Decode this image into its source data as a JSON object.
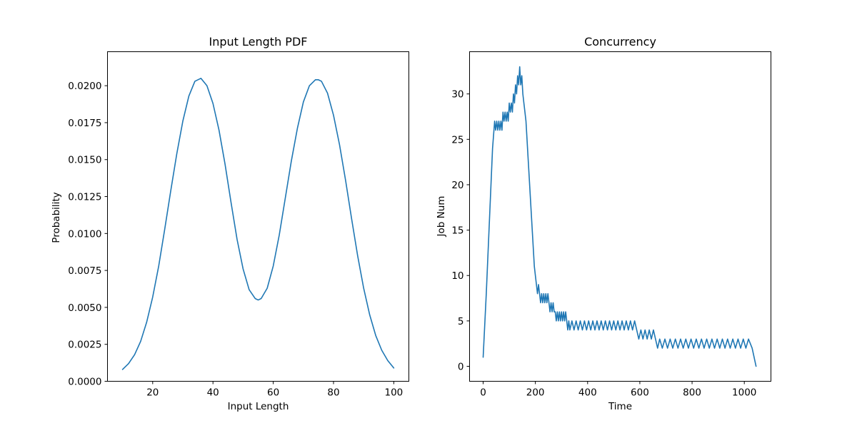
{
  "figure": {
    "line_color": "#1f77b4"
  },
  "chart_data": [
    {
      "type": "line",
      "title": "Input Length PDF",
      "xlabel": "Input Length",
      "ylabel": "Probability",
      "xlim": [
        5,
        105
      ],
      "ylim": [
        0,
        0.0223
      ],
      "xticks": [
        20,
        40,
        60,
        80,
        100
      ],
      "xtick_labels": [
        "20",
        "40",
        "60",
        "80",
        "100"
      ],
      "yticks": [
        0,
        0.0025,
        0.005,
        0.0075,
        0.01,
        0.0125,
        0.015,
        0.0175,
        0.02
      ],
      "ytick_labels": [
        "0.0000",
        "0.0025",
        "0.0050",
        "0.0075",
        "0.0100",
        "0.0125",
        "0.0150",
        "0.0175",
        "0.0200"
      ],
      "grid": false,
      "series": [
        {
          "x": [
            10,
            12,
            14,
            16,
            18,
            20,
            22,
            24,
            26,
            28,
            30,
            32,
            34,
            36,
            38,
            40,
            42,
            44,
            46,
            48,
            50,
            52,
            54,
            55,
            56,
            58,
            60,
            62,
            64,
            66,
            68,
            70,
            72,
            74,
            75,
            76,
            78,
            80,
            82,
            84,
            86,
            88,
            90,
            92,
            94,
            96,
            98,
            100
          ],
          "values": [
            0.0008,
            0.0012,
            0.0018,
            0.0027,
            0.004,
            0.0057,
            0.0078,
            0.0103,
            0.0129,
            0.0154,
            0.0176,
            0.0193,
            0.0203,
            0.0205,
            0.02,
            0.0188,
            0.017,
            0.0147,
            0.0121,
            0.0096,
            0.0076,
            0.0062,
            0.0056,
            0.0055,
            0.0056,
            0.0063,
            0.0078,
            0.0099,
            0.0124,
            0.0149,
            0.0171,
            0.0189,
            0.02,
            0.0204,
            0.0204,
            0.0203,
            0.0195,
            0.018,
            0.016,
            0.0136,
            0.011,
            0.0085,
            0.0063,
            0.0045,
            0.0031,
            0.0021,
            0.0014,
            0.0009
          ]
        }
      ]
    },
    {
      "type": "line",
      "title": "Concurrency",
      "xlabel": "Time",
      "ylabel": "Job Num",
      "xlim": [
        -52,
        1102
      ],
      "ylim": [
        -1.65,
        34.65
      ],
      "xticks": [
        0,
        200,
        400,
        600,
        800,
        1000
      ],
      "xtick_labels": [
        "0",
        "200",
        "400",
        "600",
        "800",
        "1000"
      ],
      "yticks": [
        0,
        5,
        10,
        15,
        20,
        25,
        30
      ],
      "ytick_labels": [
        "0",
        "5",
        "10",
        "15",
        "20",
        "25",
        "30"
      ],
      "grid": false,
      "series": [
        {
          "x": [
            0,
            12,
            24,
            36,
            44,
            48,
            52,
            56,
            60,
            64,
            68,
            72,
            76,
            80,
            84,
            88,
            92,
            96,
            100,
            104,
            108,
            112,
            116,
            120,
            124,
            128,
            132,
            136,
            140,
            144,
            148,
            152,
            156,
            160,
            164,
            168,
            172,
            176,
            180,
            184,
            188,
            192,
            196,
            200,
            204,
            208,
            212,
            216,
            220,
            224,
            228,
            232,
            236,
            240,
            244,
            248,
            252,
            256,
            260,
            264,
            268,
            272,
            276,
            280,
            284,
            288,
            292,
            296,
            300,
            304,
            308,
            312,
            316,
            320,
            324,
            328,
            332,
            340,
            348,
            356,
            364,
            372,
            380,
            388,
            396,
            404,
            412,
            420,
            428,
            436,
            444,
            452,
            460,
            468,
            476,
            484,
            492,
            500,
            508,
            516,
            524,
            532,
            540,
            548,
            556,
            564,
            572,
            580,
            588,
            596,
            604,
            612,
            620,
            628,
            636,
            644,
            652,
            660,
            668,
            676,
            686,
            696,
            706,
            716,
            726,
            736,
            746,
            756,
            766,
            776,
            786,
            796,
            806,
            816,
            826,
            836,
            846,
            856,
            866,
            876,
            886,
            896,
            906,
            916,
            926,
            936,
            946,
            956,
            966,
            976,
            986,
            996,
            1006,
            1016,
            1030,
            1045
          ],
          "values": [
            1,
            8,
            16,
            24,
            27,
            26,
            27,
            26,
            27,
            26,
            27,
            26,
            28,
            27,
            28,
            27,
            28,
            27,
            29,
            28,
            29,
            28,
            30,
            29,
            31,
            30,
            32,
            31,
            33,
            31,
            32,
            30,
            29,
            28,
            27,
            25,
            23,
            21,
            19,
            17,
            15,
            13,
            11,
            10,
            9,
            8,
            9,
            8,
            7,
            8,
            7,
            8,
            7,
            8,
            7,
            8,
            7,
            6,
            7,
            6,
            7,
            6,
            6,
            5,
            6,
            5,
            6,
            5,
            6,
            5,
            6,
            5,
            6,
            5,
            4,
            5,
            4,
            5,
            4,
            5,
            4,
            5,
            4,
            5,
            4,
            5,
            4,
            5,
            4,
            5,
            4,
            5,
            4,
            5,
            4,
            5,
            4,
            5,
            4,
            5,
            4,
            5,
            4,
            5,
            4,
            5,
            4,
            5,
            4,
            3,
            4,
            3,
            4,
            3,
            4,
            3,
            4,
            3,
            2,
            3,
            2,
            3,
            2,
            3,
            2,
            3,
            2,
            3,
            2,
            3,
            2,
            3,
            2,
            3,
            2,
            3,
            2,
            3,
            2,
            3,
            2,
            3,
            2,
            3,
            2,
            3,
            2,
            3,
            2,
            3,
            2,
            3,
            2,
            3,
            2,
            0
          ]
        }
      ]
    }
  ]
}
